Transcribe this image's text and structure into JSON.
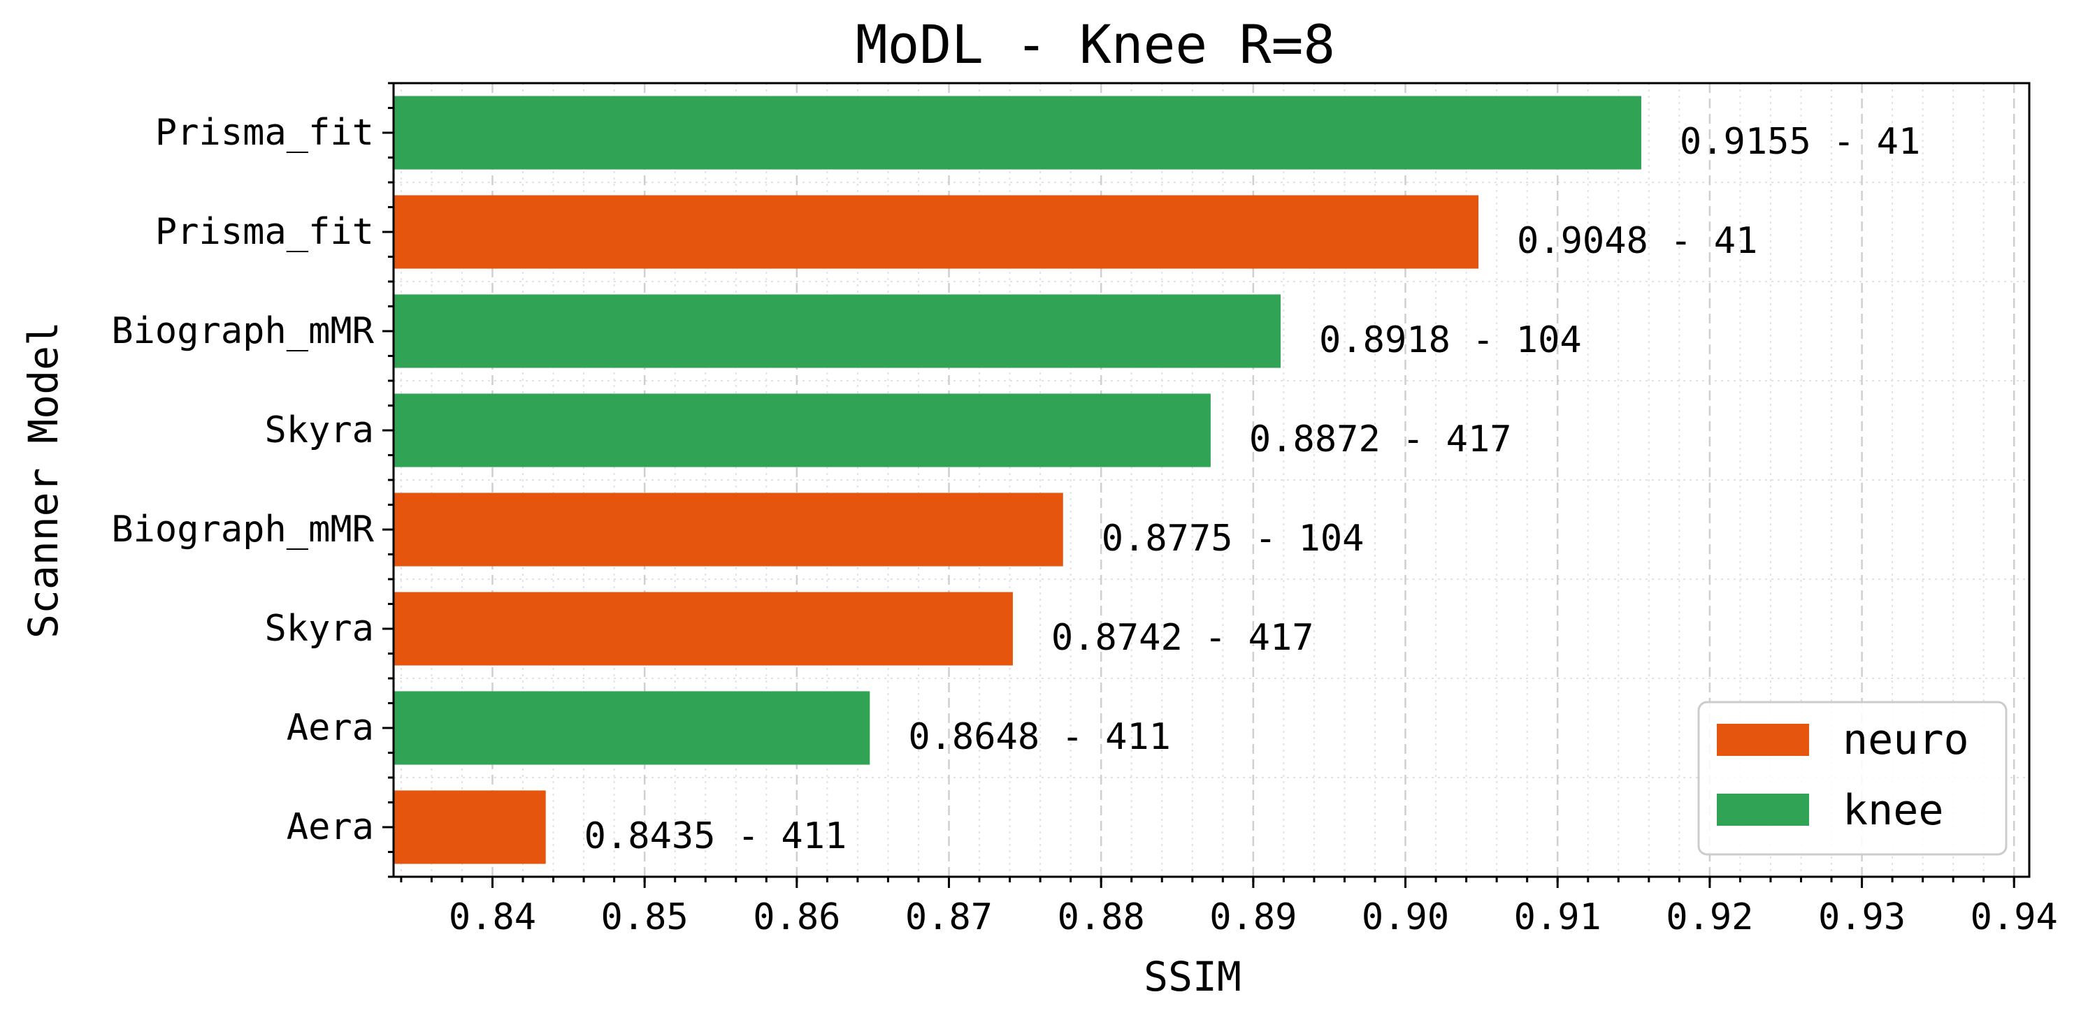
{
  "chart_data": {
    "type": "bar",
    "orientation": "horizontal",
    "title": "MoDL - Knee R=8",
    "xlabel": "SSIM",
    "ylabel": "Scanner Model",
    "xlim": [
      0.8335,
      0.941
    ],
    "xticks": [
      "0.84",
      "0.85",
      "0.86",
      "0.87",
      "0.88",
      "0.89",
      "0.90",
      "0.91",
      "0.92",
      "0.93",
      "0.94"
    ],
    "grid": true,
    "legend": {
      "placement": "lower-right",
      "entries": [
        {
          "name": "neuro",
          "color": "#e6550d"
        },
        {
          "name": "knee",
          "color": "#31a354"
        }
      ]
    },
    "bars": [
      {
        "category": "Prisma_fit",
        "group": "knee",
        "value": 0.9155,
        "label": "0.9155 - 41"
      },
      {
        "category": "Prisma_fit",
        "group": "neuro",
        "value": 0.9048,
        "label": "0.9048 - 41"
      },
      {
        "category": "Biograph_mMR",
        "group": "knee",
        "value": 0.8918,
        "label": "0.8918 - 104"
      },
      {
        "category": "Skyra",
        "group": "knee",
        "value": 0.8872,
        "label": "0.8872 - 417"
      },
      {
        "category": "Biograph_mMR",
        "group": "neuro",
        "value": 0.8775,
        "label": "0.8775 - 104"
      },
      {
        "category": "Skyra",
        "group": "neuro",
        "value": 0.8742,
        "label": "0.8742 - 417"
      },
      {
        "category": "Aera",
        "group": "knee",
        "value": 0.8648,
        "label": "0.8648 - 411"
      },
      {
        "category": "Aera",
        "group": "neuro",
        "value": 0.8435,
        "label": "0.8435 - 411"
      }
    ]
  }
}
